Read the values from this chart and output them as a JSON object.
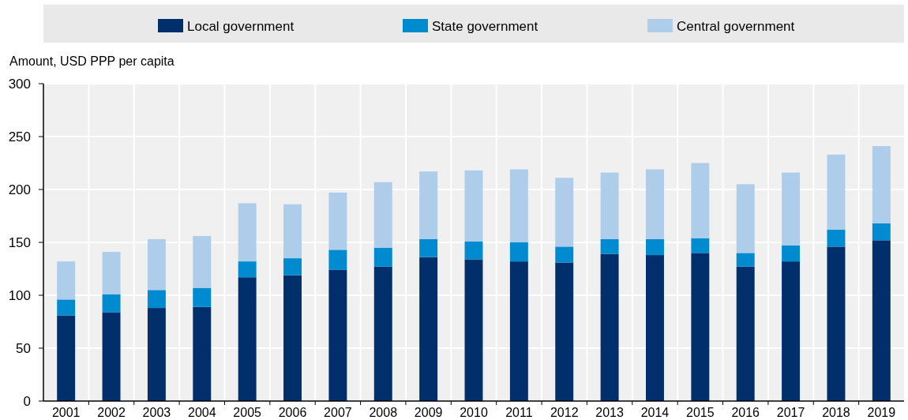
{
  "chart_data": {
    "type": "bar",
    "stacked": true,
    "ylabel": "Amount, USD PPP per capita",
    "categories": [
      "2001",
      "2002",
      "2003",
      "2004",
      "2005",
      "2006",
      "2007",
      "2008",
      "2009",
      "2010",
      "2011",
      "2012",
      "2013",
      "2014",
      "2015",
      "2016",
      "2017",
      "2018",
      "2019"
    ],
    "series": [
      {
        "name": "Local government",
        "color": "#002f6c",
        "values": [
          81,
          84,
          88,
          89,
          117,
          119,
          124,
          127,
          136,
          134,
          132,
          131,
          139,
          138,
          140,
          127,
          132,
          146,
          152
        ]
      },
      {
        "name": "State government",
        "color": "#008ad0",
        "values": [
          15,
          17,
          17,
          18,
          15,
          16,
          19,
          18,
          17,
          17,
          18,
          15,
          14,
          15,
          14,
          13,
          15,
          16,
          16
        ]
      },
      {
        "name": "Central government",
        "color": "#adcdeb",
        "values": [
          36,
          40,
          48,
          49,
          55,
          51,
          54,
          62,
          64,
          67,
          69,
          65,
          63,
          66,
          71,
          65,
          69,
          71,
          73
        ]
      }
    ],
    "ylim": [
      0,
      300
    ],
    "yticks": [
      0,
      50,
      100,
      150,
      200,
      250,
      300
    ],
    "grid": true,
    "legend": "top"
  }
}
